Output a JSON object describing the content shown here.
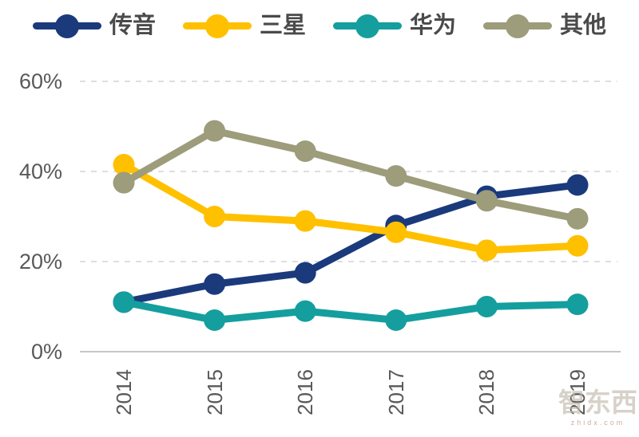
{
  "chart_data": {
    "type": "line",
    "title": "",
    "x": [
      "2014",
      "2015",
      "2016",
      "2017",
      "2018",
      "2019"
    ],
    "series": [
      {
        "name": "传音",
        "color": "#1A3A7C",
        "values": [
          11,
          15,
          17.5,
          28,
          34.5,
          37
        ]
      },
      {
        "name": "三星",
        "color": "#FFC000",
        "values": [
          41.5,
          30,
          29,
          26.5,
          22.5,
          23.5
        ]
      },
      {
        "name": "华为",
        "color": "#159E9E",
        "values": [
          11,
          7,
          9,
          7,
          10,
          10.5
        ]
      },
      {
        "name": "其他",
        "color": "#9D9C7B",
        "values": [
          37.5,
          49,
          44.5,
          39,
          33.5,
          29.5
        ]
      }
    ],
    "xlabel": "",
    "ylabel": "",
    "ylim": [
      0,
      60
    ],
    "y_tick_step": 20,
    "grid": "horizontal-dashed",
    "legend_position": "top",
    "marker": "circle"
  },
  "axes": {
    "y_ticks": [
      "60%",
      "40%",
      "20%",
      "0%"
    ],
    "y_tick_values": [
      60,
      40,
      20,
      0
    ]
  },
  "watermark": {
    "logo_text": "智东西",
    "sub_text": "zhidx.com"
  },
  "colors": {
    "background": "#FFFFFF",
    "axis_text": "#595959",
    "gridline": "#D4D4D4",
    "baseline": "#C6C6C6"
  }
}
